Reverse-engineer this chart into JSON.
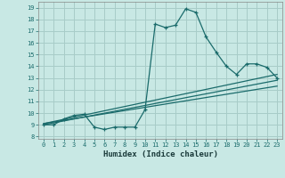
{
  "title": "",
  "xlabel": "Humidex (Indice chaleur)",
  "ylabel": "",
  "xlim": [
    -0.5,
    23.5
  ],
  "ylim": [
    7.8,
    19.5
  ],
  "xticks": [
    0,
    1,
    2,
    3,
    4,
    5,
    6,
    7,
    8,
    9,
    10,
    11,
    12,
    13,
    14,
    15,
    16,
    17,
    18,
    19,
    20,
    21,
    22,
    23
  ],
  "yticks": [
    8,
    9,
    10,
    11,
    12,
    13,
    14,
    15,
    16,
    17,
    18,
    19
  ],
  "bg_color": "#c8e8e4",
  "grid_color": "#a8ccc8",
  "line_color": "#1a6b6b",
  "main_x": [
    0,
    1,
    2,
    3,
    4,
    5,
    6,
    7,
    8,
    9,
    10,
    11,
    12,
    13,
    14,
    15,
    16,
    17,
    18,
    19,
    20,
    21,
    22,
    23
  ],
  "main_y": [
    9.0,
    9.0,
    9.5,
    9.8,
    9.9,
    8.8,
    8.6,
    8.8,
    8.8,
    8.8,
    10.3,
    17.6,
    17.3,
    17.5,
    18.9,
    18.6,
    16.5,
    15.2,
    14.0,
    13.3,
    14.2,
    14.2,
    13.9,
    13.0
  ],
  "line1_x": [
    0,
    23
  ],
  "line1_y": [
    9.1,
    13.3
  ],
  "line2_x": [
    0,
    23
  ],
  "line2_y": [
    9.0,
    12.8
  ],
  "line3_x": [
    0,
    23
  ],
  "line3_y": [
    9.1,
    12.3
  ]
}
